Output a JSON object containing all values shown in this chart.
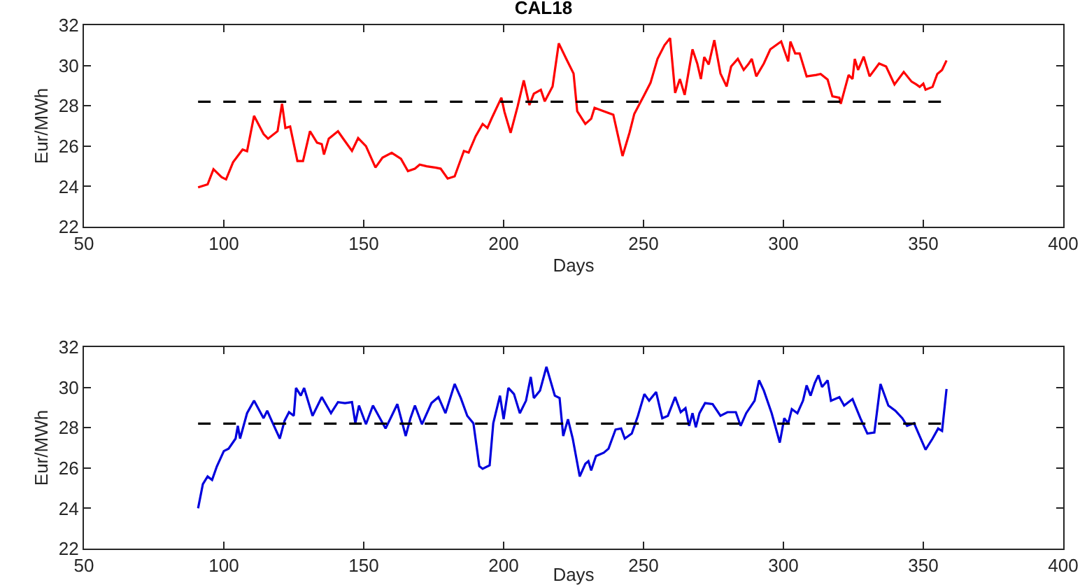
{
  "chart_data": [
    {
      "type": "line",
      "title": "CAL18",
      "xlabel": "Days",
      "ylabel": "Eur/MWh",
      "xlim": [
        50,
        400
      ],
      "xticks": [
        50,
        100,
        150,
        200,
        250,
        300,
        350,
        400
      ],
      "ylim": [
        22,
        32
      ],
      "yticks": [
        22,
        24,
        26,
        28,
        30,
        32
      ],
      "grid": false,
      "marker": "none",
      "line_style": "solid",
      "ref_lines": [
        {
          "axis": "y",
          "value": 28.2,
          "color": "#000000",
          "line_style": "dashed"
        }
      ],
      "series": [
        {
          "color": "#ff0000",
          "x": [
            90.8,
            94.2,
            96.3,
            99.2,
            100.8,
            103.3,
            106.7,
            108.3,
            110.8,
            114.2,
            115.8,
            119.2,
            120.8,
            122,
            123.7,
            126.3,
            128.3,
            130.8,
            133.3,
            135,
            135.8,
            137.5,
            140.8,
            142.5,
            145.8,
            148,
            150.8,
            154.2,
            156.7,
            160,
            163.3,
            165.8,
            168.3,
            170,
            172.5,
            175.8,
            177.5,
            180,
            182.5,
            185.8,
            187.5,
            190,
            192.5,
            194.2,
            195.8,
            199.2,
            200.3,
            202.5,
            205,
            207.2,
            209.2,
            210.8,
            213.3,
            214.7,
            217.5,
            219.7,
            222.5,
            225,
            226.3,
            229.2,
            231.3,
            232.5,
            235.8,
            239.2,
            242.5,
            245,
            246.7,
            250,
            252.5,
            255,
            257.5,
            259.5,
            261.3,
            263,
            264.7,
            267.5,
            269.2,
            270.5,
            271.7,
            273.3,
            275.3,
            277.5,
            279.7,
            281.3,
            283.7,
            285.8,
            287.5,
            288.7,
            290.3,
            293,
            295.3,
            299.2,
            301.7,
            302.5,
            304.2,
            305.8,
            308.3,
            311.7,
            313.3,
            315.8,
            317.5,
            320,
            320.5,
            323.3,
            324.7,
            325.5,
            326.7,
            328.7,
            330.8,
            334.2,
            336.7,
            339.7,
            343,
            345.8,
            347.5,
            348.7,
            350,
            350.8,
            353.3,
            355,
            356.7,
            358.3
          ],
          "values": [
            23.95,
            24.1,
            24.85,
            24.46,
            24.35,
            25.2,
            25.83,
            25.75,
            27.5,
            26.6,
            26.37,
            26.74,
            28.1,
            26.9,
            26.97,
            25.26,
            25.26,
            26.74,
            26.17,
            26.1,
            25.58,
            26.37,
            26.74,
            26.4,
            25.76,
            26.4,
            26.0,
            24.94,
            25.43,
            25.67,
            25.37,
            24.76,
            24.88,
            25.08,
            25.0,
            24.93,
            24.88,
            24.39,
            24.5,
            25.76,
            25.68,
            26.49,
            27.1,
            26.9,
            27.4,
            28.4,
            27.7,
            26.66,
            27.97,
            29.26,
            28.04,
            28.6,
            28.79,
            28.22,
            28.96,
            31.1,
            30.3,
            29.6,
            27.73,
            27.1,
            27.36,
            27.9,
            27.73,
            27.56,
            25.51,
            26.67,
            27.6,
            28.47,
            29.14,
            30.33,
            31.01,
            31.36,
            28.64,
            29.33,
            28.54,
            30.8,
            30.1,
            29.33,
            30.42,
            30.05,
            31.26,
            29.6,
            28.96,
            29.95,
            30.33,
            29.78,
            30.07,
            30.33,
            29.46,
            30.1,
            30.8,
            31.19,
            30.2,
            31.19,
            30.6,
            30.6,
            29.46,
            29.53,
            29.58,
            29.3,
            28.47,
            28.4,
            28.1,
            29.53,
            29.33,
            30.33,
            29.78,
            30.44,
            29.46,
            30.1,
            29.95,
            29.06,
            29.68,
            29.2,
            29.06,
            28.94,
            29.1,
            28.8,
            28.94,
            29.58,
            29.78,
            30.25
          ]
        }
      ]
    },
    {
      "type": "line",
      "xlabel": "Days",
      "ylabel": "Eur/MWh",
      "xlim": [
        50,
        400
      ],
      "xticks": [
        50,
        100,
        150,
        200,
        250,
        300,
        350,
        400
      ],
      "ylim": [
        22,
        32
      ],
      "yticks": [
        22,
        24,
        26,
        28,
        30,
        32
      ],
      "grid": false,
      "marker": "none",
      "line_style": "solid",
      "ref_lines": [
        {
          "axis": "y",
          "value": 28.2,
          "color": "#000000",
          "line_style": "dashed"
        }
      ],
      "series": [
        {
          "color": "#0000dd",
          "x": [
            90.8,
            92.5,
            94.2,
            95.8,
            97.5,
            100,
            101.7,
            104.2,
            105,
            105.8,
            108.3,
            110.8,
            114.2,
            115.5,
            117.5,
            120,
            121.7,
            123.3,
            125,
            125.8,
            127.5,
            128.7,
            131.7,
            135,
            138.3,
            140.8,
            143.3,
            145.8,
            147,
            148.3,
            150.8,
            153.3,
            155.8,
            157.8,
            160,
            162,
            165,
            166.7,
            168.3,
            170.8,
            174.2,
            176.7,
            179.2,
            182.5,
            184.7,
            187,
            189.2,
            191.3,
            192.5,
            195,
            196.3,
            198.7,
            200,
            201.7,
            203.7,
            205.8,
            208,
            209.7,
            210.8,
            213,
            215.3,
            218.3,
            220,
            221.3,
            223,
            224.7,
            227.2,
            229.2,
            230.3,
            231.3,
            233,
            235.8,
            237.5,
            240,
            242,
            243.3,
            245.8,
            248,
            250.3,
            252,
            254.5,
            256.7,
            258.7,
            261.3,
            263.3,
            265,
            266.3,
            267.5,
            268.7,
            270,
            272,
            274.7,
            277.5,
            280,
            283,
            284.7,
            286.7,
            289.7,
            291.3,
            293,
            295.8,
            298.7,
            300.3,
            301.7,
            303,
            305,
            307,
            308.3,
            309.7,
            311.2,
            312.5,
            313.8,
            315.8,
            317,
            320,
            321.7,
            324.7,
            327.5,
            330,
            332.5,
            334.7,
            337.5,
            340,
            342.5,
            344.2,
            346.7,
            348.3,
            350.8,
            353.3,
            355.3,
            356.7,
            358.3
          ],
          "values": [
            24.0,
            25.2,
            25.58,
            25.41,
            26.08,
            26.84,
            26.96,
            27.46,
            28.09,
            27.46,
            28.72,
            29.34,
            28.47,
            28.84,
            28.22,
            27.46,
            28.34,
            28.77,
            28.59,
            29.97,
            29.59,
            29.97,
            28.59,
            29.52,
            28.72,
            29.27,
            29.22,
            29.27,
            28.22,
            29.1,
            28.17,
            29.1,
            28.47,
            27.96,
            28.59,
            29.17,
            27.59,
            28.47,
            29.1,
            28.17,
            29.22,
            29.52,
            28.72,
            30.17,
            29.47,
            28.59,
            28.22,
            26.09,
            25.96,
            26.13,
            28.22,
            29.59,
            28.42,
            29.97,
            29.67,
            28.72,
            29.34,
            30.52,
            29.47,
            29.84,
            31.02,
            29.59,
            29.47,
            27.59,
            28.42,
            27.46,
            25.58,
            26.21,
            26.34,
            25.88,
            26.59,
            26.76,
            26.96,
            27.91,
            27.96,
            27.46,
            27.71,
            28.59,
            29.67,
            29.34,
            29.77,
            28.47,
            28.59,
            29.52,
            28.77,
            28.97,
            28.09,
            28.72,
            28.02,
            28.72,
            29.22,
            29.17,
            28.59,
            28.77,
            28.77,
            28.09,
            28.72,
            29.34,
            30.35,
            29.84,
            28.72,
            27.26,
            28.47,
            28.22,
            28.92,
            28.72,
            29.34,
            30.1,
            29.59,
            30.22,
            30.6,
            30.02,
            30.35,
            29.34,
            29.52,
            29.1,
            29.42,
            28.47,
            27.71,
            27.76,
            30.17,
            29.1,
            28.84,
            28.47,
            28.09,
            28.22,
            27.71,
            26.91,
            27.46,
            27.96,
            27.84,
            29.92
          ]
        }
      ]
    }
  ]
}
